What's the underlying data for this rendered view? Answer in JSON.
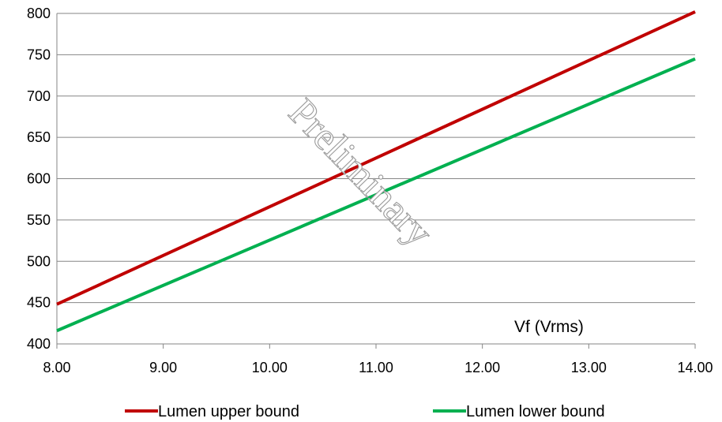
{
  "chart_data": {
    "type": "line",
    "title": "",
    "xlabel": "",
    "ylabel": "",
    "xlim": [
      8.0,
      14.0
    ],
    "ylim": [
      400,
      800
    ],
    "x_ticks": [
      "8.00",
      "9.00",
      "10.00",
      "11.00",
      "12.00",
      "13.00",
      "14.00"
    ],
    "y_ticks": [
      "400",
      "450",
      "500",
      "550",
      "600",
      "650",
      "700",
      "750",
      "800"
    ],
    "grid": "horizontal",
    "legend_position": "bottom",
    "annotation": "Vf (Vrms)",
    "watermark": "Preliminary",
    "series": [
      {
        "name": "Lumen upper bound",
        "color": "#c00000",
        "x": [
          8.0,
          14.0
        ],
        "y": [
          448,
          802
        ]
      },
      {
        "name": "Lumen lower bound",
        "color": "#00b050",
        "x": [
          8.0,
          14.0
        ],
        "y": [
          416,
          745
        ]
      }
    ]
  }
}
